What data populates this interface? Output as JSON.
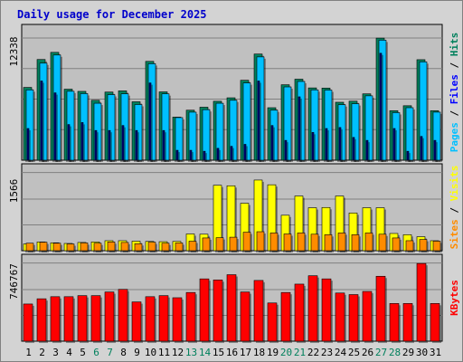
{
  "chart_data": {
    "type": "bar",
    "title": "Daily usage for December 2025",
    "categories": [
      "1",
      "2",
      "3",
      "4",
      "5",
      "6",
      "7",
      "8",
      "9",
      "10",
      "11",
      "12",
      "13",
      "14",
      "15",
      "16",
      "17",
      "18",
      "19",
      "20",
      "21",
      "22",
      "23",
      "24",
      "25",
      "26",
      "27",
      "28",
      "29",
      "30",
      "31"
    ],
    "weekend_days": [
      "6",
      "7",
      "13",
      "14",
      "20",
      "21",
      "27",
      "28"
    ],
    "colors": {
      "hits": "#00805c",
      "files": "#00c0ff",
      "pages": "#00008b",
      "visits": "#ffff00",
      "sites": "#ff8c00",
      "kbytes": "#ff0000",
      "panel_bg": "#c0c0c0",
      "frame_bg": "#d3d3d3",
      "grid": "#808080",
      "weekday_label": "#000000",
      "weekend_label": "#00805c",
      "title": "#0000cc"
    },
    "panels": [
      {
        "ymax_label": "12338",
        "ylim": [
          0,
          12338
        ],
        "side_labels": [
          {
            "text": "Pages",
            "color": "#00c0ff"
          },
          {
            "text": " / ",
            "color": "#000000"
          },
          {
            "text": "Files",
            "color": "#0000ff"
          },
          {
            "text": " / ",
            "color": "#000000"
          },
          {
            "text": "Hits",
            "color": "#00805c"
          }
        ],
        "series": [
          {
            "key": "hits",
            "values": [
              7350,
              10170,
              10890,
              7170,
              6950,
              6050,
              6880,
              7000,
              5900,
              9980,
              6900,
              4350,
              5050,
              5350,
              5950,
              6300,
              8070,
              10720,
              5300,
              7620,
              8180,
              7300,
              7280,
              5850,
              5960,
              6700,
              12330,
              5000,
              5500,
              10150,
              5000
            ]
          },
          {
            "key": "files",
            "values": [
              7100,
              9800,
              10620,
              6960,
              6720,
              5750,
              6620,
              6700,
              5620,
              9740,
              6700,
              4300,
              4850,
              5100,
              5750,
              6050,
              7800,
              10430,
              5050,
              7400,
              7950,
              7100,
              7080,
              5600,
              5700,
              6500,
              12120,
              4800,
              5300,
              9930,
              4850
            ]
          },
          {
            "key": "pages",
            "values": [
              3200,
              8000,
              6800,
              3600,
              3800,
              3000,
              3000,
              3500,
              3000,
              7800,
              3000,
              1000,
              1000,
              900,
              1200,
              1400,
              1600,
              8000,
              3500,
              2000,
              6400,
              2800,
              3200,
              3300,
              2300,
              2000,
              10800,
              3200,
              900,
              2400,
              2000
            ]
          }
        ]
      },
      {
        "ymax_label": "1566",
        "ylim": [
          0,
          1566
        ],
        "side_labels": [
          {
            "text": "Sites",
            "color": "#ff8c00"
          },
          {
            "text": " / ",
            "color": "#000000"
          },
          {
            "text": "Visits",
            "color": "#ffff00"
          }
        ],
        "series": [
          {
            "key": "visits",
            "values": [
              135,
              175,
              158,
              145,
              165,
              175,
              200,
              200,
              190,
              185,
              180,
              185,
              335,
              330,
              1310,
              1300,
              950,
              1415,
              1320,
              710,
              1095,
              860,
              865,
              1095,
              755,
              860,
              860,
              345,
              320,
              280,
              200
            ]
          },
          {
            "key": "sites",
            "values": [
              150,
              170,
              150,
              135,
              155,
              150,
              175,
              165,
              140,
              170,
              150,
              155,
              190,
              255,
              260,
              270,
              370,
              380,
              355,
              335,
              355,
              330,
              320,
              355,
              320,
              355,
              330,
              255,
              200,
              225,
              190
            ]
          }
        ]
      },
      {
        "ymax_label": "746767",
        "ylim": [
          0,
          746767
        ],
        "side_labels": [
          {
            "text": "KBytes",
            "color": "#ff0000"
          }
        ],
        "series": [
          {
            "key": "kbytes",
            "values": [
              355000,
              405000,
              425000,
              425000,
              435000,
              435000,
              470000,
              495000,
              375000,
              425000,
              435000,
              415000,
              465000,
              595000,
              585000,
              635000,
              470000,
              580000,
              365000,
              465000,
              545000,
              625000,
              595000,
              460000,
              445000,
              475000,
              620000,
              360000,
              360000,
              742000,
              360000
            ]
          }
        ]
      }
    ]
  }
}
